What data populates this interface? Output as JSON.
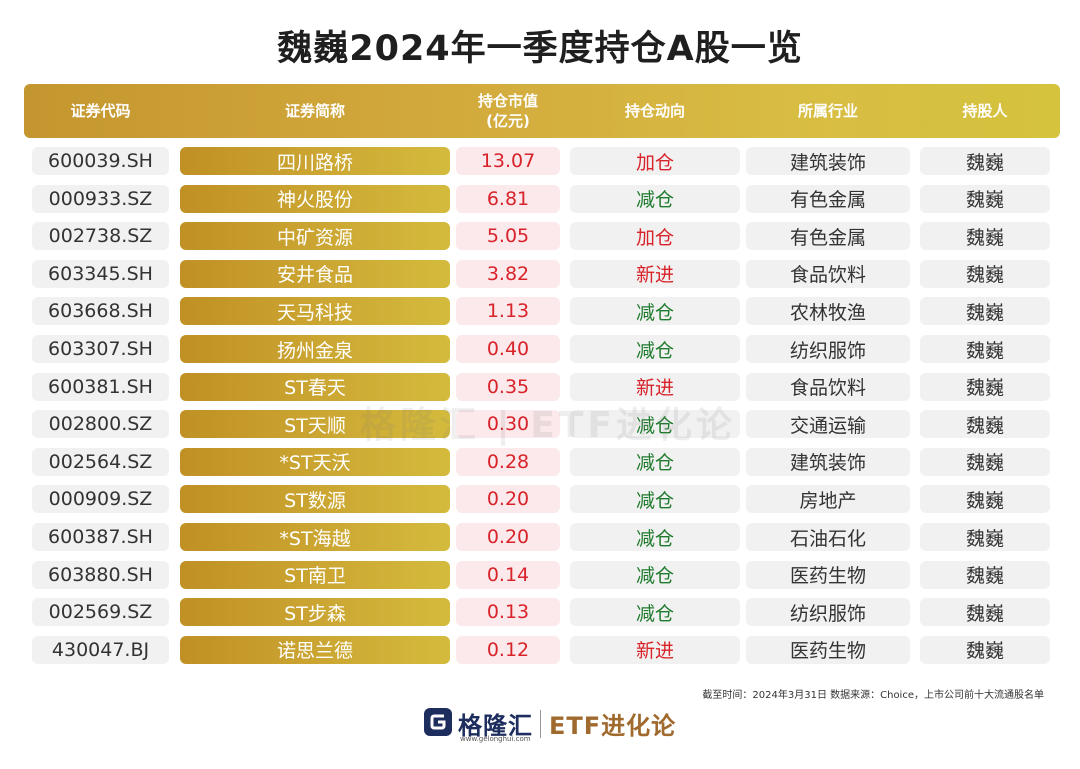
{
  "title": "魏巍2024年一季度持仓A股一览",
  "headers": {
    "code": "证券代码",
    "name": "证券简称",
    "value_line1": "持仓市值",
    "value_line2": "(亿元)",
    "action": "持仓动向",
    "industry": "所属行业",
    "holder": "持股人"
  },
  "colors": {
    "gold": "#c9a134",
    "increase_red": "#d8232a",
    "decrease_green": "#1e7a2c"
  },
  "rows": [
    {
      "code": "600039.SH",
      "name": "四川路桥",
      "value": "13.07",
      "action": "加仓",
      "action_color": "red",
      "industry": "建筑装饰",
      "holder": "魏巍"
    },
    {
      "code": "000933.SZ",
      "name": "神火股份",
      "value": "6.81",
      "action": "减仓",
      "action_color": "green",
      "industry": "有色金属",
      "holder": "魏巍"
    },
    {
      "code": "002738.SZ",
      "name": "中矿资源",
      "value": "5.05",
      "action": "加仓",
      "action_color": "red",
      "industry": "有色金属",
      "holder": "魏巍"
    },
    {
      "code": "603345.SH",
      "name": "安井食品",
      "value": "3.82",
      "action": "新进",
      "action_color": "red",
      "industry": "食品饮料",
      "holder": "魏巍"
    },
    {
      "code": "603668.SH",
      "name": "天马科技",
      "value": "1.13",
      "action": "减仓",
      "action_color": "green",
      "industry": "农林牧渔",
      "holder": "魏巍"
    },
    {
      "code": "603307.SH",
      "name": "扬州金泉",
      "value": "0.40",
      "action": "减仓",
      "action_color": "green",
      "industry": "纺织服饰",
      "holder": "魏巍"
    },
    {
      "code": "600381.SH",
      "name": "ST春天",
      "value": "0.35",
      "action": "新进",
      "action_color": "red",
      "industry": "食品饮料",
      "holder": "魏巍"
    },
    {
      "code": "002800.SZ",
      "name": "ST天顺",
      "value": "0.30",
      "action": "减仓",
      "action_color": "green",
      "industry": "交通运输",
      "holder": "魏巍"
    },
    {
      "code": "002564.SZ",
      "name": "*ST天沃",
      "value": "0.28",
      "action": "减仓",
      "action_color": "green",
      "industry": "建筑装饰",
      "holder": "魏巍"
    },
    {
      "code": "000909.SZ",
      "name": "ST数源",
      "value": "0.20",
      "action": "减仓",
      "action_color": "green",
      "industry": "房地产",
      "holder": "魏巍"
    },
    {
      "code": "600387.SH",
      "name": "*ST海越",
      "value": "0.20",
      "action": "减仓",
      "action_color": "green",
      "industry": "石油石化",
      "holder": "魏巍"
    },
    {
      "code": "603880.SH",
      "name": "ST南卫",
      "value": "0.14",
      "action": "减仓",
      "action_color": "green",
      "industry": "医药生物",
      "holder": "魏巍"
    },
    {
      "code": "002569.SZ",
      "name": "ST步森",
      "value": "0.13",
      "action": "减仓",
      "action_color": "green",
      "industry": "纺织服饰",
      "holder": "魏巍"
    },
    {
      "code": "430047.BJ",
      "name": "诺思兰德",
      "value": "0.12",
      "action": "新进",
      "action_color": "red",
      "industry": "医药生物",
      "holder": "魏巍"
    }
  ],
  "source": "截至时间：2024年3月31日 数据来源：Choice，上市公司前十大流通股名单",
  "logo": {
    "icon": "gelonghui-g-icon",
    "brand_cn": "格隆汇",
    "brand_url": "www.gelonghui.com",
    "brand_etf": "ETF进化论"
  },
  "watermark": "格隆汇 | ETF进化论"
}
